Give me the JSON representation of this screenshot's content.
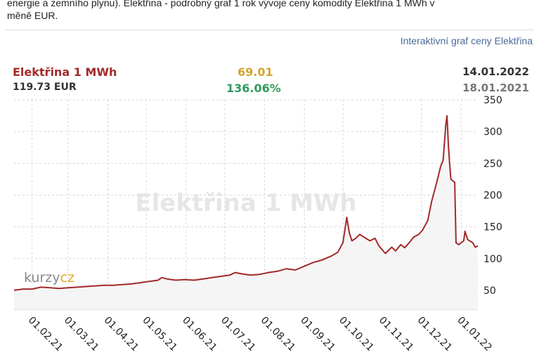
{
  "intro": {
    "line1": "energie a zemního plynu). Elektřina - podrobný graf 1 rok vývoje ceny komodity Elektřina 1 MWh v",
    "line2": "měně EUR."
  },
  "link": {
    "label": "Interaktivní graf ceny Elektřina"
  },
  "header": {
    "name": "Elektřina 1 MWh",
    "price": "119.73 EUR",
    "change": "69.01",
    "change_pct": "136.06%",
    "date_end": "14.01.2022",
    "date_start": "18.01.2021"
  },
  "colors": {
    "line": "#a32a2a",
    "area": "#f3f3f3",
    "grid": "#d8d8d8",
    "change": "#d4a52d",
    "pct": "#2f9a5a"
  },
  "logo": {
    "main": "kurzy",
    "accent": "cz"
  },
  "chart_data": {
    "type": "area",
    "watermark": "Elektřina 1 MWh",
    "x_start": "2021-01-18",
    "x_end": "2022-01-14",
    "x_ticks": [
      "01.02.21",
      "01.03.21",
      "01.04.21",
      "01.05.21",
      "01.06.21",
      "01.07.21",
      "01.08.21",
      "01.09.21",
      "01.10.21",
      "01.11.21",
      "01.12.21",
      "01.01.22"
    ],
    "x_tick_dates": [
      "2021-02-01",
      "2021-03-01",
      "2021-04-01",
      "2021-05-01",
      "2021-06-01",
      "2021-07-01",
      "2021-08-01",
      "2021-09-01",
      "2021-10-01",
      "2021-11-01",
      "2021-12-01",
      "2022-01-01"
    ],
    "y_ticks": [
      50,
      100,
      150,
      200,
      250,
      300,
      350
    ],
    "ylim": [
      20,
      350
    ],
    "grid": true,
    "series": [
      {
        "x": [
          "2021-01-18",
          "2021-01-25",
          "2021-02-01",
          "2021-02-08",
          "2021-02-15",
          "2021-02-22",
          "2021-03-01",
          "2021-03-08",
          "2021-03-15",
          "2021-03-22",
          "2021-03-29",
          "2021-04-05",
          "2021-04-12",
          "2021-04-19",
          "2021-04-26",
          "2021-05-03",
          "2021-05-10",
          "2021-05-13",
          "2021-05-17",
          "2021-05-24",
          "2021-05-31",
          "2021-06-07",
          "2021-06-14",
          "2021-06-21",
          "2021-06-28",
          "2021-07-05",
          "2021-07-09",
          "2021-07-14",
          "2021-07-21",
          "2021-07-28",
          "2021-08-04",
          "2021-08-11",
          "2021-08-18",
          "2021-08-25",
          "2021-09-01",
          "2021-09-08",
          "2021-09-15",
          "2021-09-22",
          "2021-09-27",
          "2021-10-01",
          "2021-10-04",
          "2021-10-06",
          "2021-10-08",
          "2021-10-11",
          "2021-10-14",
          "2021-10-18",
          "2021-10-22",
          "2021-10-26",
          "2021-10-29",
          "2021-11-03",
          "2021-11-08",
          "2021-11-11",
          "2021-11-15",
          "2021-11-18",
          "2021-11-22",
          "2021-11-25",
          "2021-11-29",
          "2021-12-02",
          "2021-12-06",
          "2021-12-09",
          "2021-12-13",
          "2021-12-16",
          "2021-12-18",
          "2021-12-20",
          "2021-12-21",
          "2021-12-22",
          "2021-12-23",
          "2021-12-24",
          "2021-12-27",
          "2021-12-28",
          "2021-12-30",
          "2022-01-03",
          "2022-01-04",
          "2022-01-06",
          "2022-01-10",
          "2022-01-12",
          "2022-01-14"
        ],
        "values": [
          50,
          52,
          52,
          55,
          54,
          53,
          54,
          55,
          56,
          57,
          58,
          58,
          59,
          60,
          62,
          64,
          66,
          70,
          68,
          66,
          67,
          66,
          68,
          70,
          72,
          74,
          78,
          76,
          74,
          75,
          78,
          80,
          84,
          82,
          88,
          94,
          98,
          104,
          110,
          125,
          165,
          140,
          128,
          132,
          138,
          133,
          128,
          132,
          120,
          108,
          118,
          112,
          122,
          117,
          126,
          134,
          138,
          145,
          160,
          190,
          220,
          245,
          255,
          310,
          325,
          280,
          250,
          225,
          220,
          125,
          122,
          128,
          143,
          130,
          125,
          118,
          120
        ]
      }
    ]
  }
}
